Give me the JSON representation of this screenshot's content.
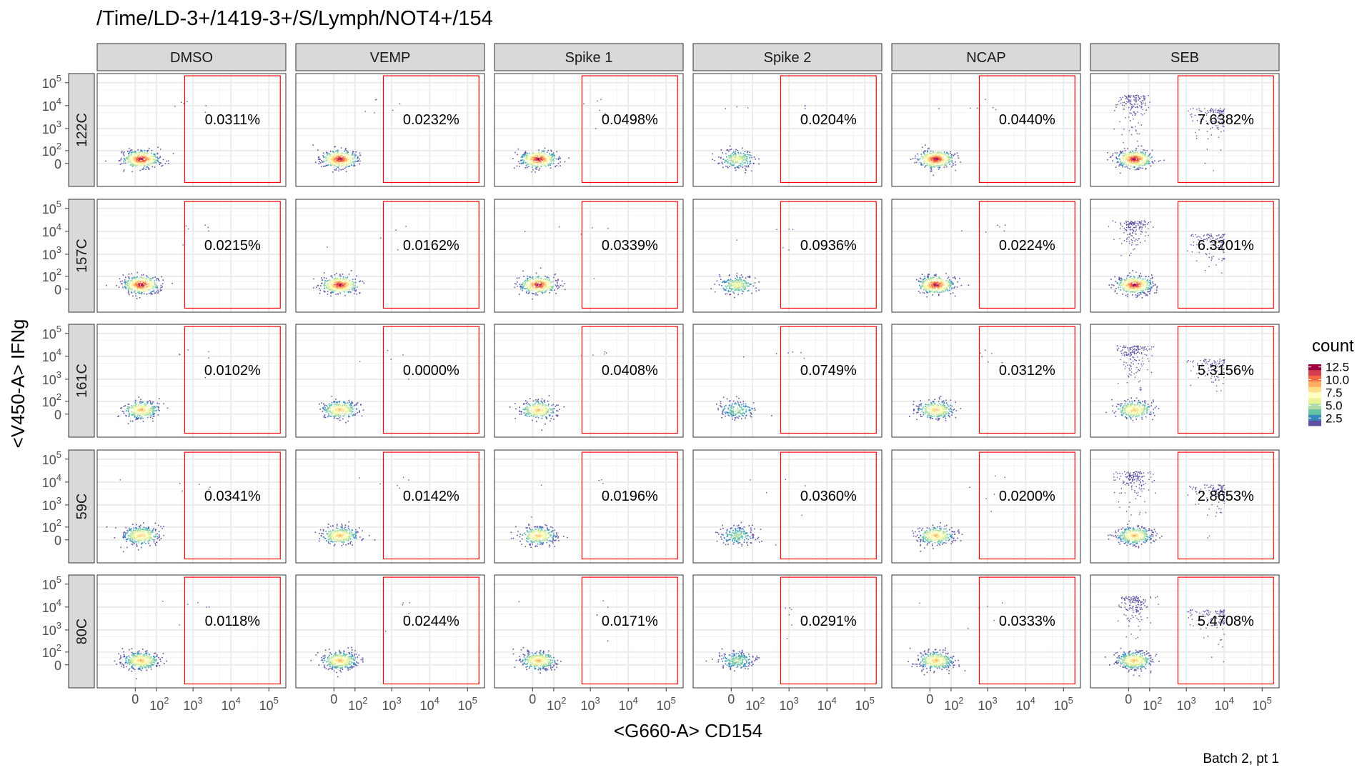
{
  "title": "/Time/LD-3+/1419-3+/S/Lymph/NOT4+/154",
  "caption": "Batch 2, pt 1",
  "chart_data": {
    "type": "scatter",
    "subtype": "faceted flow-cytometry density plot with gate",
    "xlabel": "<G660-A> CD154",
    "ylabel": "<V450-A> IFNg",
    "x_scale": "biexponential",
    "y_scale": "biexponential",
    "x_ticks": [
      {
        "value": 0,
        "label": "0"
      },
      {
        "value": 100,
        "label": "10",
        "exp": "2"
      },
      {
        "value": 1000,
        "label": "10",
        "exp": "3"
      },
      {
        "value": 10000,
        "label": "10",
        "exp": "4"
      },
      {
        "value": 100000,
        "label": "10",
        "exp": "5"
      }
    ],
    "y_ticks": [
      {
        "value": 0,
        "label": "0"
      },
      {
        "value": 100,
        "label": "10",
        "exp": "2"
      },
      {
        "value": 1000,
        "label": "10",
        "exp": "3"
      },
      {
        "value": 10000,
        "label": "10",
        "exp": "4"
      },
      {
        "value": 100000,
        "label": "10",
        "exp": "5"
      }
    ],
    "columns": [
      "DMSO",
      "VEMP",
      "Spike 1",
      "Spike 2",
      "NCAP",
      "SEB"
    ],
    "rows": [
      "122C",
      "157C",
      "161C",
      "59C",
      "80C"
    ],
    "gate": {
      "x_min": 600,
      "x_max": 200000,
      "y_min": -200,
      "y_max": 200000,
      "color": "#ff0000"
    },
    "gate_percent": [
      [
        "0.0311%",
        "0.0232%",
        "0.0498%",
        "0.0204%",
        "0.0440%",
        "7.6382%"
      ],
      [
        "0.0215%",
        "0.0162%",
        "0.0339%",
        "0.0936%",
        "0.0224%",
        "6.3201%"
      ],
      [
        "0.0102%",
        "0.0000%",
        "0.0408%",
        "0.0749%",
        "0.0312%",
        "5.3156%"
      ],
      [
        "0.0341%",
        "0.0142%",
        "0.0196%",
        "0.0360%",
        "0.0200%",
        "2.8653%"
      ],
      [
        "0.0118%",
        "0.0244%",
        "0.0171%",
        "0.0291%",
        "0.0333%",
        "5.4708%"
      ]
    ],
    "legend": {
      "title": "count",
      "position": "right",
      "range": [
        1,
        13
      ],
      "ticks": [
        {
          "value": 2.5,
          "label": "2.5"
        },
        {
          "value": 5.0,
          "label": "5.0"
        },
        {
          "value": 7.5,
          "label": "7.5"
        },
        {
          "value": 10.0,
          "label": "10.0"
        },
        {
          "value": 12.5,
          "label": "12.5"
        }
      ],
      "colors": [
        "#5e4fa2",
        "#3288bd",
        "#66c2a5",
        "#abdda4",
        "#e6f598",
        "#ffffbf",
        "#fee08b",
        "#fdae61",
        "#f46d43",
        "#d53e4f",
        "#9e0142"
      ]
    },
    "grid": true,
    "colors": {
      "strip_fill": "#d9d9d9",
      "panel_grid": "#ebebeb",
      "panel_border": "#333333",
      "axis_text": "#4d4d4d"
    }
  }
}
